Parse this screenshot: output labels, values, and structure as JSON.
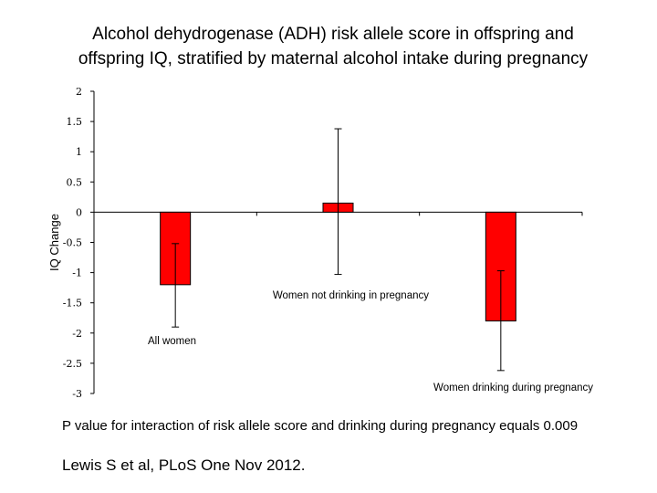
{
  "chart_data": {
    "type": "bar",
    "title_line1": "Alcohol dehydrogenase (ADH) risk allele score in offspring and",
    "title_line2": "offspring IQ, stratified by maternal alcohol intake during pregnancy",
    "ylabel": "IQ Change",
    "ylim": [
      -3,
      2
    ],
    "yticks": [
      2,
      1.5,
      1,
      0.5,
      0,
      -0.5,
      -1,
      -1.5,
      -2,
      -2.5,
      -3
    ],
    "ytick_labels": [
      "2",
      "1.5",
      "1",
      "0.5",
      "0",
      "-0.5",
      "-1",
      "-1.5",
      "-2",
      "-2.5",
      "-3"
    ],
    "categories": [
      "All women",
      "Women not drinking in pregnancy",
      "Women drinking during pregnancy"
    ],
    "values": [
      -1.2,
      0.15,
      -1.8
    ],
    "error_low": [
      -1.9,
      -1.03,
      -2.62
    ],
    "error_high": [
      -0.52,
      1.38,
      -0.97
    ],
    "bar_color": "#ff0000",
    "grid": false
  },
  "footnote": "P value for interaction of risk allele score and drinking during pregnancy equals 0.009",
  "citation": "Lewis S et al, PLoS One Nov  2012."
}
